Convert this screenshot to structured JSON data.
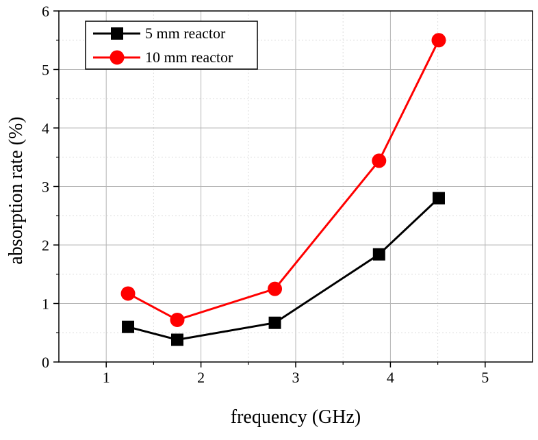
{
  "chart_data": {
    "type": "line",
    "title": "",
    "xlabel": "frequency (GHz)",
    "ylabel": "absorption rate (%)",
    "xlim": [
      0.5,
      5.5
    ],
    "ylim": [
      0,
      6
    ],
    "xticks": [
      1,
      2,
      3,
      4,
      5
    ],
    "yticks": [
      0,
      1,
      2,
      3,
      4,
      5,
      6
    ],
    "xtick_labels": [
      "1",
      "2",
      "3",
      "4",
      "5"
    ],
    "ytick_labels": [
      "0",
      "1",
      "2",
      "3",
      "4",
      "5",
      "6"
    ],
    "grid": true,
    "legend_position": "top-left",
    "series": [
      {
        "name": "5 mm reactor",
        "color": "#000000",
        "marker": "square",
        "x": [
          1.23,
          1.75,
          2.78,
          3.88,
          4.51
        ],
        "y": [
          0.6,
          0.38,
          0.67,
          1.84,
          2.8
        ]
      },
      {
        "name": "10 mm reactor",
        "color": "#ff0000",
        "marker": "circle",
        "x": [
          1.23,
          1.75,
          2.78,
          3.88,
          4.51
        ],
        "y": [
          1.17,
          0.72,
          1.25,
          3.44,
          5.5
        ]
      }
    ]
  }
}
